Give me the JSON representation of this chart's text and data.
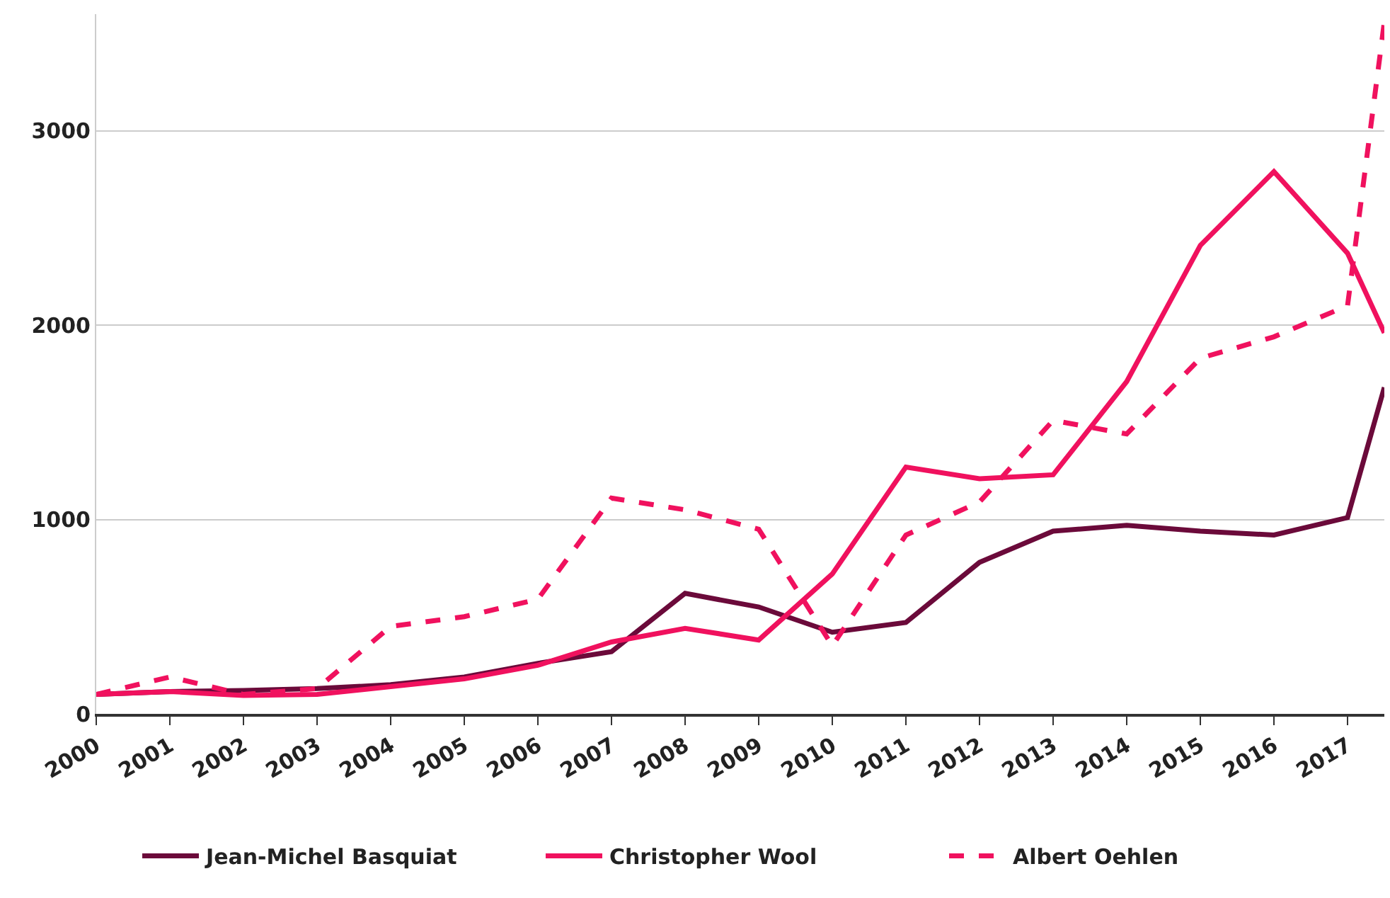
{
  "chart_data": {
    "type": "line",
    "x": [
      2000,
      2001,
      2002,
      2003,
      2004,
      2005,
      2006,
      2007,
      2008,
      2009,
      2010,
      2011,
      2012,
      2013,
      2014,
      2015,
      2016,
      2017,
      2017.5
    ],
    "series": [
      {
        "name": "Jean-Michel Basquiat",
        "color": "#6b0a3a",
        "values": [
          100,
          115,
          120,
          130,
          150,
          190,
          260,
          320,
          620,
          550,
          420,
          470,
          780,
          940,
          970,
          940,
          920,
          1010,
          1680
        ]
      },
      {
        "name": "Christopher Wool",
        "color": "#f0115e",
        "values": [
          100,
          115,
          95,
          100,
          140,
          180,
          250,
          370,
          440,
          380,
          720,
          1270,
          1210,
          1230,
          1710,
          2410,
          2790,
          2370,
          1960
        ]
      },
      {
        "name": "Albert Oehlen",
        "color": "#f0115e",
        "line_style": "dashed",
        "values": [
          100,
          190,
          100,
          130,
          450,
          500,
          590,
          1110,
          1050,
          950,
          350,
          920,
          1090,
          1510,
          1440,
          1830,
          1940,
          2100,
          3560
        ]
      }
    ],
    "xlim": [
      2000,
      2017.5
    ],
    "xticks": [
      2000,
      2001,
      2002,
      2003,
      2004,
      2005,
      2006,
      2007,
      2008,
      2009,
      2010,
      2011,
      2012,
      2013,
      2014,
      2015,
      2016,
      2017
    ],
    "ylim": [
      0,
      3600
    ],
    "yticks": [
      0,
      1000,
      2000,
      3000
    ],
    "grid": "y",
    "legend": "bottom",
    "marker": "none",
    "line_style": "solid"
  }
}
